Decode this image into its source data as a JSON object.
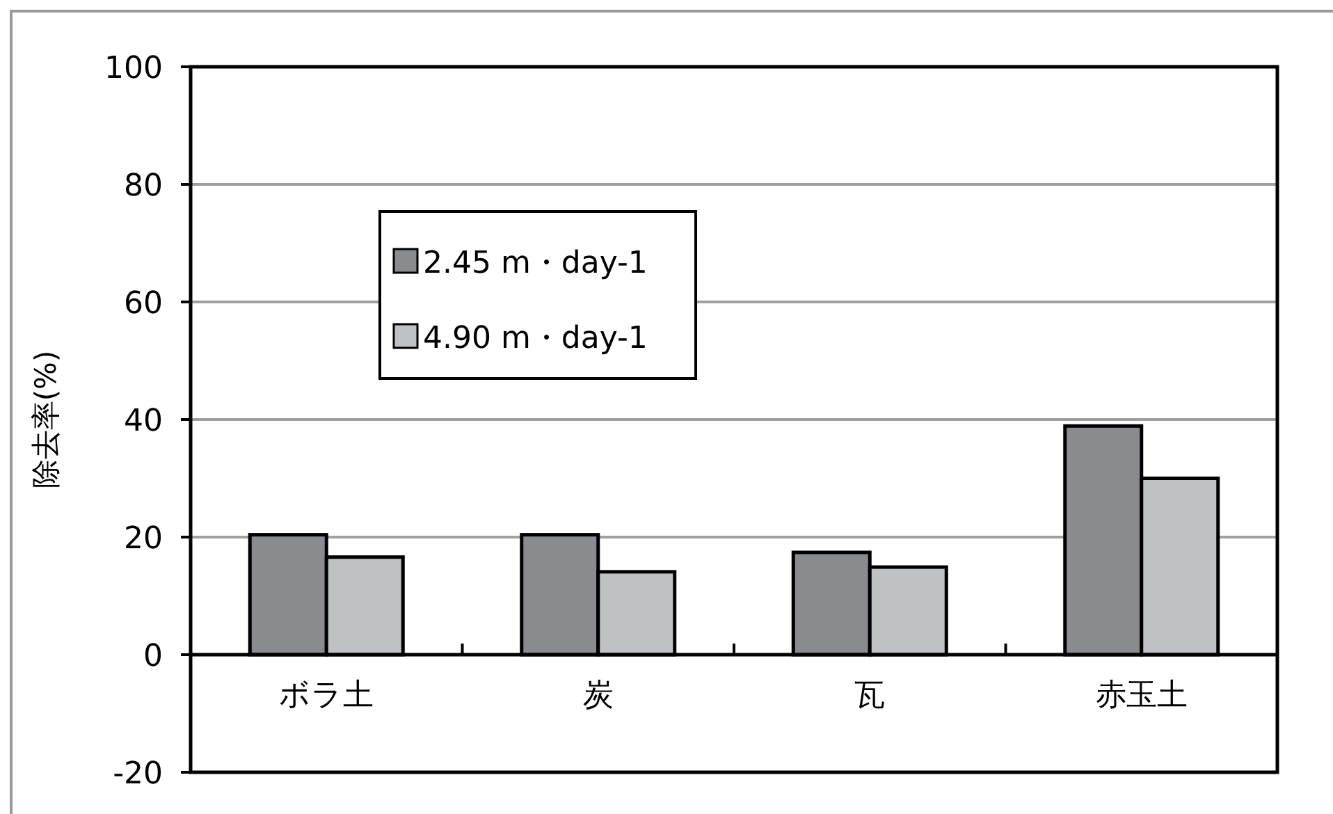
{
  "chart_data": {
    "type": "bar",
    "ylabel": "除去率(%)",
    "categories": [
      "ボラ土",
      "炭",
      "瓦",
      "赤玉土"
    ],
    "series": [
      {
        "name": "2.45 m・day-1",
        "color": "#8a8b8e",
        "values": [
          20.4,
          20.4,
          17.4,
          38.9
        ]
      },
      {
        "name": "4.90 m・day-1",
        "color": "#c0c1c4",
        "values": [
          16.6,
          14.1,
          14.9,
          30.0
        ]
      }
    ],
    "ylim": [
      -20,
      100
    ],
    "yticks": [
      -20,
      0,
      20,
      40,
      60,
      80,
      100
    ],
    "grid": "y",
    "legend": "top left"
  }
}
